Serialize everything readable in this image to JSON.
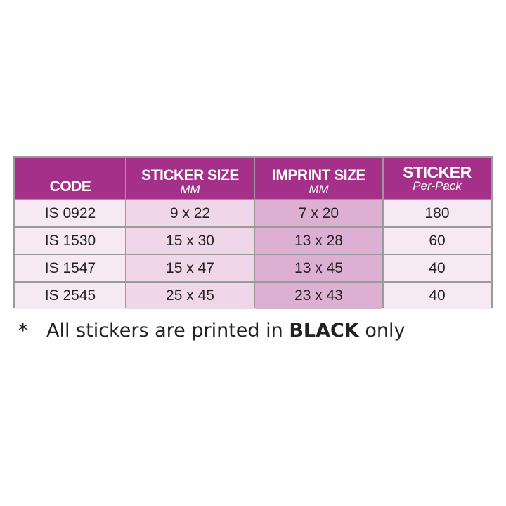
{
  "table": {
    "headers": [
      {
        "title": "CODE",
        "sub": ""
      },
      {
        "title": "STICKER SIZE",
        "sub": "MM"
      },
      {
        "title": "IMPRINT SIZE",
        "sub": "MM"
      },
      {
        "title": "STICKER",
        "sub": "Per-Pack"
      }
    ],
    "rows": [
      [
        "IS 0922",
        "9 x 22",
        "7 x 20",
        "180"
      ],
      [
        "IS 1530",
        "15 x 30",
        "13 x 28",
        "60"
      ],
      [
        "IS 1547",
        "15 x 47",
        "13 x 45",
        "40"
      ],
      [
        "IS 2545",
        "25 x 45",
        "23 x 43",
        "40"
      ]
    ]
  },
  "note": {
    "star": "*",
    "before": "All stickers are printed in ",
    "bold": "BLACK",
    "after": " only"
  },
  "colors": {
    "header": "#a5308a",
    "col_code": "#f6e9f2",
    "col_sticker": "#efd6e8",
    "col_imprint": "#ddafd2",
    "col_pack": "#f6e9f2"
  }
}
